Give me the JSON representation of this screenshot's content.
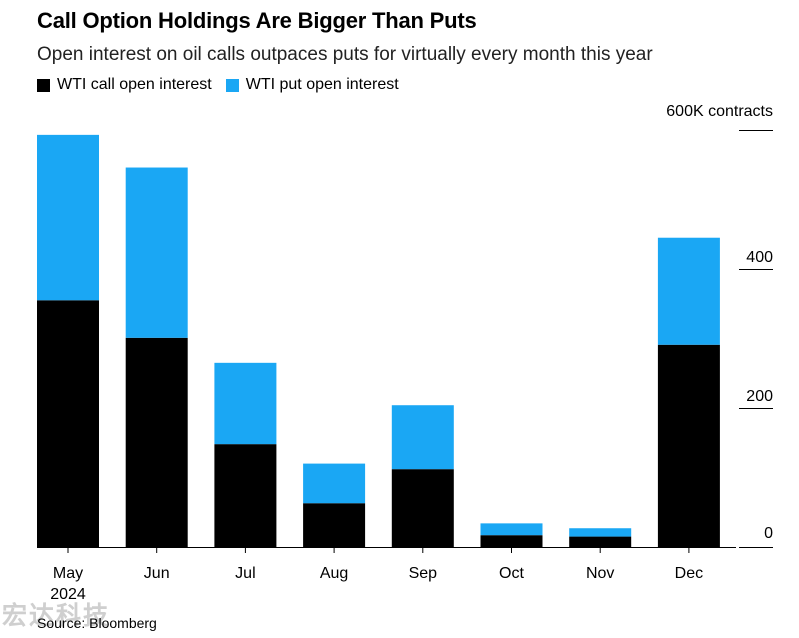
{
  "title": "Call Option Holdings Are Bigger Than Puts",
  "subtitle": "Open interest on oil calls outpaces puts for virtually every month this year",
  "source": "Source: Bloomberg",
  "watermark": "宏达科技",
  "colors": {
    "call": "#000000",
    "put": "#1aa7f4"
  },
  "chart_data": {
    "type": "bar",
    "stacked": true,
    "categories": [
      "May\n2024",
      "Jun",
      "Jul",
      "Aug",
      "Sep",
      "Oct",
      "Nov",
      "Dec"
    ],
    "series": [
      {
        "name": "WTI call open interest",
        "color": "#000000",
        "values": [
          355,
          301,
          148,
          63,
          112,
          17,
          15,
          291
        ]
      },
      {
        "name": "WTI put open interest",
        "color": "#1aa7f4",
        "values": [
          238,
          245,
          117,
          57,
          92,
          17,
          12,
          154
        ]
      }
    ],
    "yticks": [
      {
        "value": 0,
        "label": "0"
      },
      {
        "value": 200,
        "label": "200"
      },
      {
        "value": 400,
        "label": "400"
      },
      {
        "value": 600,
        "label": "600K contracts"
      }
    ],
    "ylim": [
      0,
      600
    ],
    "legend_position": "top-left",
    "grid": false
  }
}
